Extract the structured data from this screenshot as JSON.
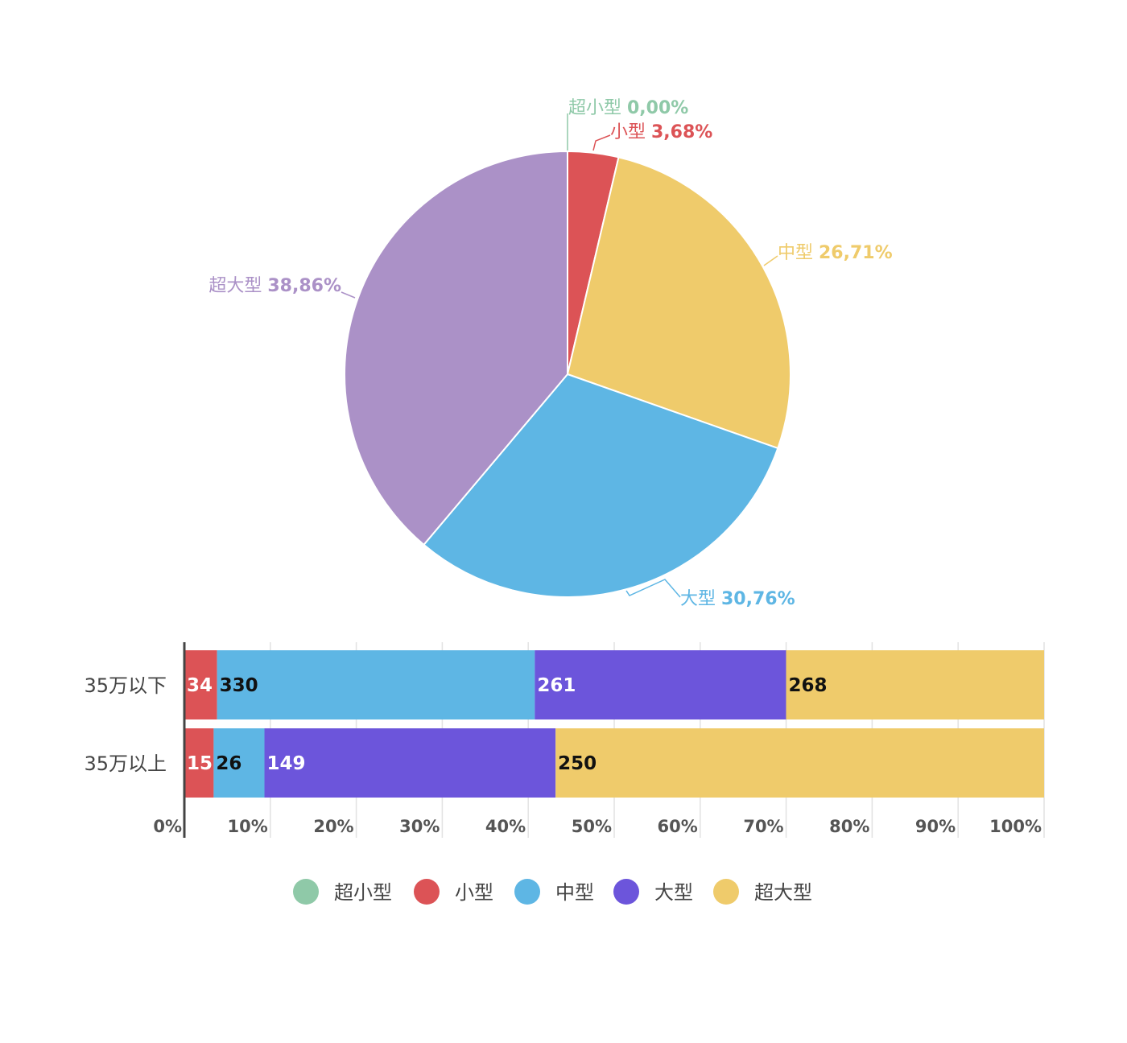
{
  "chart_data": [
    {
      "type": "pie",
      "slices": [
        {
          "label": "超小型",
          "pct_text": "0,00%",
          "value": 0.0,
          "color": "#8fc9a8"
        },
        {
          "label": "小型",
          "pct_text": "3,68%",
          "value": 3.68,
          "color": "#dc5356"
        },
        {
          "label": "中型",
          "pct_text": "26,71%",
          "value": 26.71,
          "color": "#efcb6b"
        },
        {
          "label": "大型",
          "pct_text": "30,76%",
          "value": 30.76,
          "color": "#5eb6e4"
        },
        {
          "label": "超大型",
          "pct_text": "38,86%",
          "value": 38.86,
          "color": "#ab91c7"
        }
      ]
    },
    {
      "type": "bar",
      "orientation": "horizontal",
      "stacked": "percent",
      "categories": [
        "35万以下",
        "35万以上"
      ],
      "series": [
        {
          "name": "超小型",
          "color": "#8fc9a8",
          "values": [
            0,
            0
          ]
        },
        {
          "name": "小型",
          "color": "#dc5356",
          "values": [
            34,
            15
          ]
        },
        {
          "name": "中型",
          "color": "#5eb6e4",
          "values": [
            330,
            26
          ]
        },
        {
          "name": "大型",
          "color": "#6c55db",
          "values": [
            261,
            149
          ]
        },
        {
          "name": "超大型",
          "color": "#efcb6b",
          "values": [
            268,
            250
          ]
        }
      ],
      "x_ticks": [
        "0%",
        "10%",
        "20%",
        "30%",
        "40%",
        "50%",
        "60%",
        "70%",
        "80%",
        "90%",
        "100%"
      ],
      "xlim": [
        0,
        100
      ],
      "grid": true,
      "legend_position": "bottom"
    }
  ]
}
